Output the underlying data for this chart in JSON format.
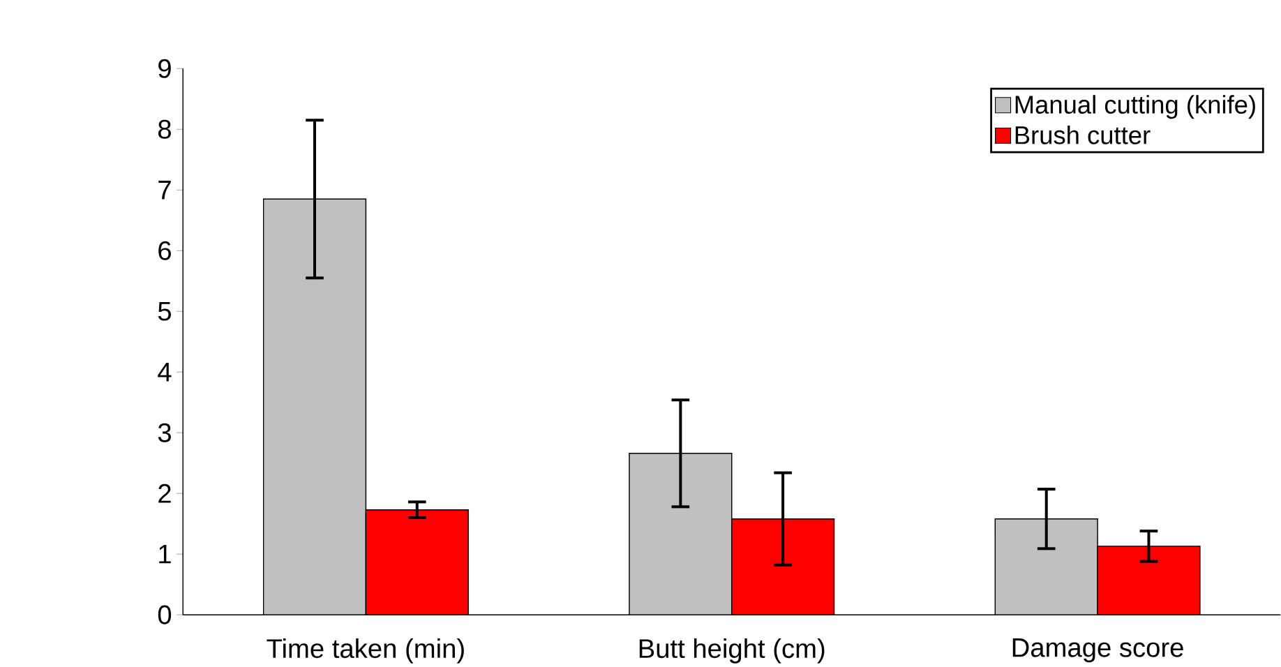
{
  "chart_data": {
    "type": "bar",
    "categories": [
      "Time taken (min)",
      "Butt height (cm)",
      "Damage score"
    ],
    "series": [
      {
        "name": "Manual cutting (knife)",
        "color": "#c0c0c0",
        "values": [
          6.85,
          2.66,
          1.58
        ],
        "errors": [
          1.3,
          0.88,
          0.49
        ]
      },
      {
        "name": "Brush cutter",
        "color": "#ff0000",
        "values": [
          1.73,
          1.58,
          1.13
        ],
        "errors": [
          0.13,
          0.76,
          0.25
        ]
      }
    ],
    "ylim": [
      0,
      9
    ],
    "yticks": [
      0,
      1,
      2,
      3,
      4,
      5,
      6,
      7,
      8,
      9
    ],
    "grid": false,
    "legend": "top right"
  }
}
